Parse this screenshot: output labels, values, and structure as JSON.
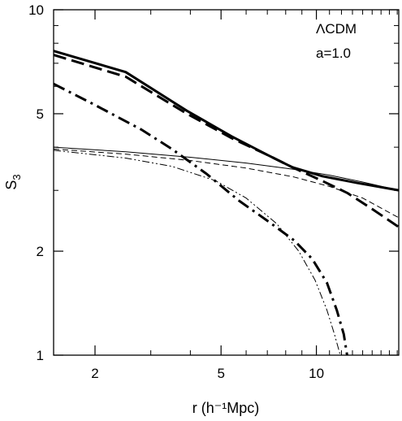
{
  "chart_data": {
    "type": "line",
    "title": "",
    "xlabel": "r (h⁻¹Mpc)",
    "ylabel": "S",
    "ylabel_subscript": "3",
    "xscale": "log",
    "yscale": "log",
    "xlim": [
      1.48,
      18.2
    ],
    "ylim": [
      1,
      10
    ],
    "x_ticks": [
      {
        "value": 2,
        "label": "2"
      },
      {
        "value": 5,
        "label": "5"
      },
      {
        "value": 10,
        "label": "10"
      }
    ],
    "y_ticks": [
      {
        "value": 1,
        "label": "1"
      },
      {
        "value": 2,
        "label": "2"
      },
      {
        "value": 5,
        "label": "5"
      },
      {
        "value": 10,
        "label": "10"
      }
    ],
    "annotations": [
      "ΛCDM",
      "a=1.0"
    ],
    "legend": "none",
    "grid": false,
    "series": [
      {
        "style": "solid-thick",
        "points": [
          [
            1.48,
            7.6
          ],
          [
            2.5,
            6.6
          ],
          [
            3.9,
            5.1
          ],
          [
            5.4,
            4.3
          ],
          [
            7.0,
            3.8
          ],
          [
            8.4,
            3.5
          ],
          [
            10.4,
            3.3
          ],
          [
            13.5,
            3.15
          ],
          [
            18.2,
            3.0
          ]
        ]
      },
      {
        "style": "dashed-thick",
        "points": [
          [
            1.48,
            7.4
          ],
          [
            2.5,
            6.4
          ],
          [
            3.9,
            5.0
          ],
          [
            5.4,
            4.25
          ],
          [
            7.0,
            3.8
          ],
          [
            8.4,
            3.5
          ],
          [
            10.4,
            3.2
          ],
          [
            12.5,
            2.95
          ],
          [
            15.0,
            2.65
          ],
          [
            18.2,
            2.35
          ]
        ]
      },
      {
        "style": "dashdot-thick",
        "points": [
          [
            1.48,
            6.1
          ],
          [
            2.0,
            5.3
          ],
          [
            2.8,
            4.5
          ],
          [
            3.5,
            3.95
          ],
          [
            4.5,
            3.35
          ],
          [
            5.7,
            2.8
          ],
          [
            7.0,
            2.45
          ],
          [
            8.5,
            2.15
          ],
          [
            9.7,
            1.9
          ],
          [
            10.8,
            1.62
          ],
          [
            11.6,
            1.35
          ],
          [
            12.2,
            1.15
          ],
          [
            12.5,
            1.0
          ]
        ]
      },
      {
        "style": "solid-thin",
        "points": [
          [
            1.48,
            4.0
          ],
          [
            2.5,
            3.88
          ],
          [
            4.0,
            3.74
          ],
          [
            6.0,
            3.6
          ],
          [
            8.5,
            3.45
          ],
          [
            11.0,
            3.32
          ],
          [
            14.0,
            3.17
          ],
          [
            18.2,
            3.0
          ]
        ]
      },
      {
        "style": "dashed-thin",
        "points": [
          [
            1.48,
            3.95
          ],
          [
            2.5,
            3.82
          ],
          [
            4.0,
            3.66
          ],
          [
            6.0,
            3.48
          ],
          [
            8.5,
            3.28
          ],
          [
            11.0,
            3.08
          ],
          [
            14.0,
            2.85
          ],
          [
            18.2,
            2.5
          ]
        ]
      },
      {
        "style": "dashdotdot-thin",
        "points": [
          [
            1.48,
            3.92
          ],
          [
            2.5,
            3.72
          ],
          [
            3.5,
            3.52
          ],
          [
            4.8,
            3.2
          ],
          [
            6.0,
            2.85
          ],
          [
            7.5,
            2.4
          ],
          [
            8.8,
            2.0
          ],
          [
            9.9,
            1.65
          ],
          [
            10.8,
            1.35
          ],
          [
            11.4,
            1.15
          ],
          [
            11.9,
            1.0
          ]
        ]
      }
    ]
  }
}
